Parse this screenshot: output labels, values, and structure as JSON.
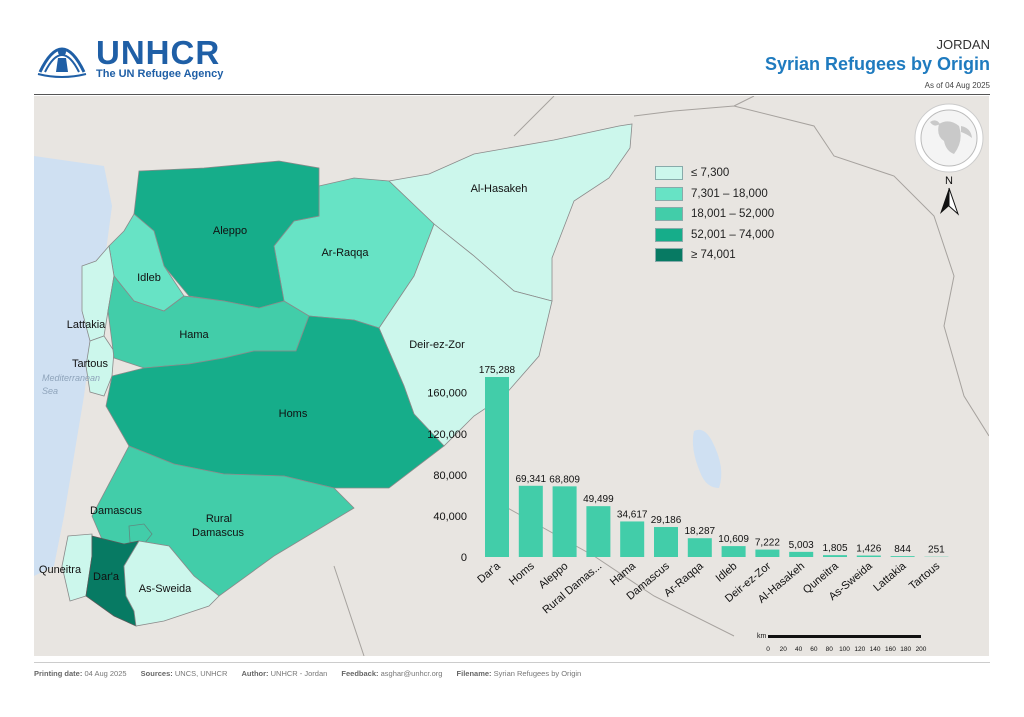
{
  "header": {
    "org_name": "UNHCR",
    "org_tagline": "The UN Refugee Agency",
    "country": "JORDAN",
    "title": "Syrian Refugees by Origin",
    "as_of": "As of 04 Aug 2025"
  },
  "map": {
    "sea_label_1": "Mediterranean",
    "sea_label_2": "Sea",
    "north_label": "N",
    "scale_unit": "km",
    "scale_ticks": [
      "0",
      "20",
      "40",
      "60",
      "80",
      "100",
      "120",
      "140",
      "160",
      "180",
      "200"
    ],
    "regions": [
      {
        "name": "Al-Hasakeh",
        "value": 5003
      },
      {
        "name": "Aleppo",
        "value": 68809
      },
      {
        "name": "Ar-Raqqa",
        "value": 18287
      },
      {
        "name": "Idleb",
        "value": 10609
      },
      {
        "name": "Lattakia",
        "value": 844
      },
      {
        "name": "Tartous",
        "value": 251
      },
      {
        "name": "Hama",
        "value": 34617
      },
      {
        "name": "Deir-ez-Zor",
        "value": 7222
      },
      {
        "name": "Homs",
        "value": 69341
      },
      {
        "name": "Damascus",
        "value": 29186
      },
      {
        "name": "Rural Damascus",
        "value": 49499
      },
      {
        "name": "Quneitra",
        "value": 1805
      },
      {
        "name": "Dar'a",
        "value": 175288
      },
      {
        "name": "As-Sweida",
        "value": 1426
      }
    ],
    "colors": {
      "class1": "#ccf7ec",
      "class2": "#67e3c5",
      "class3": "#42cda9",
      "class4": "#16ad8a",
      "class5": "#077a63",
      "background": "#e8e5e1",
      "water": "#cfe0f2",
      "bar": "#42cda9"
    }
  },
  "legend": [
    {
      "label": "≤ 7,300",
      "color": "#ccf7ec"
    },
    {
      "label": "7,301 – 18,000",
      "color": "#67e3c5"
    },
    {
      "label": "18,001 – 52,000",
      "color": "#42cda9"
    },
    {
      "label": "52,001 – 74,000",
      "color": "#16ad8a"
    },
    {
      "label": "≥ 74,001",
      "color": "#077a63"
    }
  ],
  "chart_data": {
    "type": "bar",
    "categories": [
      "Dar'a",
      "Homs",
      "Aleppo",
      "Rural Damas...",
      "Hama",
      "Damascus",
      "Ar-Raqqa",
      "Idleb",
      "Deir-ez-Zor",
      "Al-Hasakeh",
      "Quneitra",
      "As-Sweida",
      "Lattakia",
      "Tartous"
    ],
    "values": [
      175288,
      69341,
      68809,
      49499,
      34617,
      29186,
      18287,
      10609,
      7222,
      5003,
      1805,
      1426,
      844,
      251
    ],
    "value_labels": [
      "175,288",
      "69,341",
      "68,809",
      "49,499",
      "34,617",
      "29,186",
      "18,287",
      "10,609",
      "7,222",
      "5,003",
      "1,805",
      "1,426",
      "844",
      "251"
    ],
    "yticks": [
      0,
      40000,
      80000,
      120000,
      160000
    ],
    "ytick_labels": [
      "0",
      "40,000",
      "80,000",
      "120,000",
      "160,000"
    ],
    "ylim": [
      0,
      175288
    ],
    "title": "",
    "xlabel": "",
    "ylabel": "",
    "grid": false,
    "legend": "none"
  },
  "footer": {
    "printing_label": "Printing date:",
    "printing_value": "04 Aug 2025",
    "sources_label": "Sources:",
    "sources_value": "UNCS, UNHCR",
    "author_label": "Author:",
    "author_value": "UNHCR - Jordan",
    "feedback_label": "Feedback:",
    "feedback_value": "asghar@unhcr.org",
    "filename_label": "Filename:",
    "filename_value": "Syrian Refugees by Origin"
  }
}
